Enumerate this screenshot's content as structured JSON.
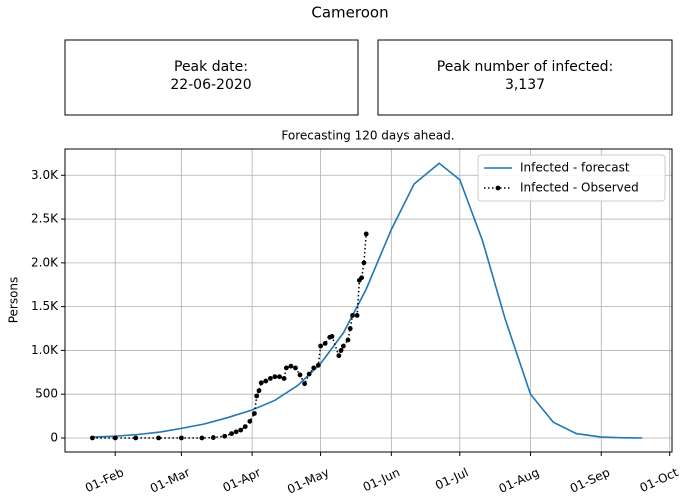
{
  "title": "Cameroon",
  "panels": [
    {
      "label": "Peak date:",
      "value": "22-06-2020"
    },
    {
      "label": "Peak number of infected:",
      "value": "3,137"
    }
  ],
  "chart_data": {
    "type": "line",
    "title": "Forecasting 120 days ahead.",
    "y_label": "Persons",
    "grid": true,
    "legend": "upper right",
    "xlim": [
      "10-Jan",
      "02-Oct"
    ],
    "xticks": [
      "01-Feb",
      "01-Mar",
      "01-Apr",
      "01-May",
      "01-Jun",
      "01-Jul",
      "01-Aug",
      "01-Sep",
      "01-Oct"
    ],
    "ylim": [
      -160,
      3300
    ],
    "yticks": [
      0,
      500,
      {
        "value": 1000,
        "label": "1.0K"
      },
      {
        "value": 1500,
        "label": "1.5K"
      },
      {
        "value": 2000,
        "label": "2.0K"
      },
      {
        "value": 2500,
        "label": "2.5K"
      },
      {
        "value": 3000,
        "label": "3.0K"
      }
    ],
    "series": [
      {
        "name": "Infected - forecast",
        "color": "#1f77b4",
        "style": "solid",
        "x": [
          "22-Jan",
          "01-Feb",
          "11-Feb",
          "21-Feb",
          "01-Mar",
          "11-Mar",
          "21-Mar",
          "01-Apr",
          "11-Apr",
          "21-Apr",
          "01-May",
          "11-May",
          "21-May",
          "01-Jun",
          "11-Jun",
          "22-Jun",
          "01-Jul",
          "11-Jul",
          "21-Jul",
          "01-Aug",
          "11-Aug",
          "21-Aug",
          "01-Sep",
          "11-Sep",
          "19-Sep"
        ],
        "values": [
          10,
          20,
          40,
          70,
          110,
          160,
          230,
          320,
          430,
          600,
          850,
          1200,
          1700,
          2380,
          2900,
          3137,
          2950,
          2250,
          1350,
          500,
          180,
          50,
          10,
          2,
          0
        ]
      },
      {
        "name": "Infected - Observed",
        "color": "#000000",
        "style": "dotted-markers",
        "x": [
          "22-Jan",
          "01-Feb",
          "10-Feb",
          "20-Feb",
          "01-Mar",
          "10-Mar",
          "15-Mar",
          "20-Mar",
          "23-Mar",
          "25-Mar",
          "27-Mar",
          "29-Mar",
          "31-Mar",
          "02-Apr",
          "03-Apr",
          "04-Apr",
          "05-Apr",
          "07-Apr",
          "09-Apr",
          "11-Apr",
          "13-Apr",
          "15-Apr",
          "16-Apr",
          "18-Apr",
          "20-Apr",
          "22-Apr",
          "24-Apr",
          "26-Apr",
          "28-Apr",
          "30-Apr",
          "01-May",
          "03-May",
          "05-May",
          "06-May",
          "09-May",
          "10-May",
          "11-May",
          "13-May",
          "14-May",
          "15-May",
          "17-May",
          "18-May",
          "19-May",
          "20-May",
          "21-May"
        ],
        "values": [
          0,
          0,
          0,
          0,
          0,
          0,
          5,
          20,
          50,
          70,
          90,
          130,
          190,
          280,
          480,
          540,
          630,
          650,
          680,
          700,
          700,
          680,
          800,
          820,
          800,
          720,
          620,
          730,
          800,
          830,
          1050,
          1080,
          1150,
          1160,
          940,
          1000,
          1050,
          1120,
          1250,
          1400,
          1400,
          1800,
          1830,
          2000,
          2330
        ]
      }
    ]
  }
}
